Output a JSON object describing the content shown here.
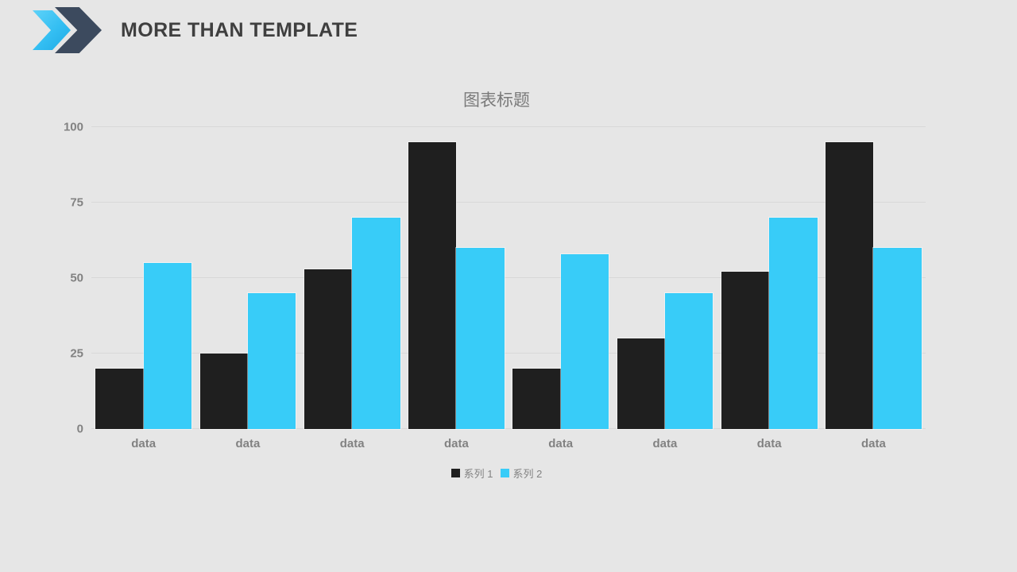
{
  "header": {
    "title": "MORE THAN TEMPLATE"
  },
  "chart_data": {
    "type": "bar",
    "title": "图表标题",
    "categories": [
      "data",
      "data",
      "data",
      "data",
      "data",
      "data",
      "data",
      "data"
    ],
    "series": [
      {
        "name": "系列 1",
        "color": "#1F1F1F",
        "values": [
          20,
          25,
          53,
          95,
          20,
          30,
          52,
          95
        ]
      },
      {
        "name": "系列 2",
        "color": "#38CCF8",
        "values": [
          55,
          45,
          70,
          60,
          58,
          45,
          70,
          60
        ]
      }
    ],
    "xlabel": "",
    "ylabel": "",
    "ylim": [
      0,
      100
    ],
    "yticks": [
      0,
      25,
      50,
      75,
      100
    ],
    "grid": true,
    "legend_position": "bottom"
  },
  "colors": {
    "background": "#E6E6E6",
    "gridline": "#D8D8D8",
    "axis_text": "#828282",
    "chart_title": "#7A7A7A",
    "header_title": "#3F3F3F",
    "logo_cyan": "#33BEF2",
    "logo_dark": "#3C4A5E"
  }
}
